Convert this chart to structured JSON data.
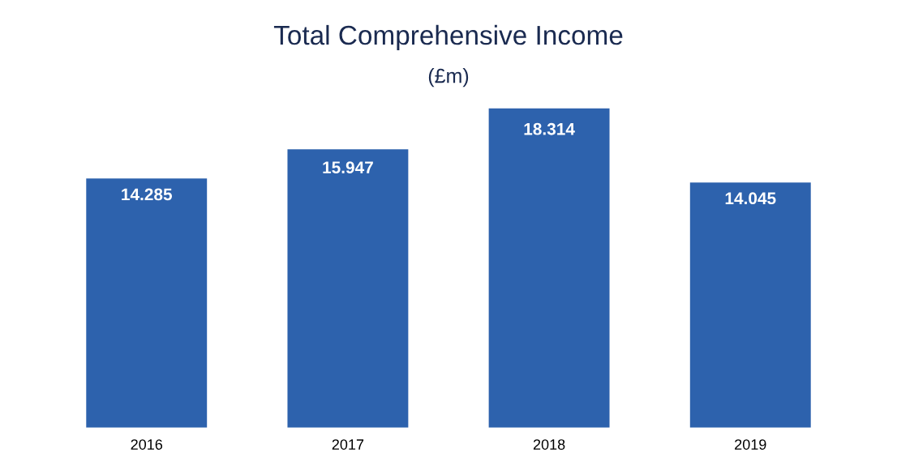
{
  "chart_data": {
    "type": "bar",
    "title": "Total Comprehensive Income",
    "subtitle": "(£m)",
    "categories": [
      "2016",
      "2017",
      "2018",
      "2019"
    ],
    "values": [
      14.285,
      15.947,
      18.314,
      14.045
    ],
    "color": "#2d62ad",
    "data_labels": true,
    "grid": false
  }
}
